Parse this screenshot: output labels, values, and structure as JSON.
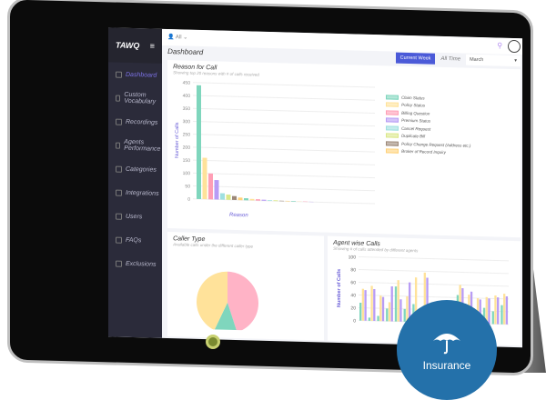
{
  "app": {
    "logo": "TAWQ",
    "filter_user": "All"
  },
  "sidebar": {
    "items": [
      {
        "label": "Dashboard",
        "active": true
      },
      {
        "label": "Custom Vocabulary"
      },
      {
        "label": "Recordings"
      },
      {
        "label": "Agents Performance"
      },
      {
        "label": "Categories"
      },
      {
        "label": "Integrations"
      },
      {
        "label": "Users"
      },
      {
        "label": "FAQs"
      },
      {
        "label": "Exclusions"
      }
    ]
  },
  "header": {
    "title": "Dashboard",
    "current_week": "Current Week",
    "all_time": "All Time",
    "period_select": "March"
  },
  "reason_chart": {
    "title": "Reason for Call",
    "subtitle": "Showing top 20 reasons with # of calls received",
    "ylabel": "Number of Calls",
    "xlabel": "Reason"
  },
  "caller_chart": {
    "title": "Caller Type",
    "subtitle": "Available calls under the different caller type"
  },
  "agent_chart": {
    "title": "Agent wise Calls",
    "subtitle": "Showing # of calls attended by different agents",
    "ylabel": "Number of Calls"
  },
  "badge": {
    "label": "Insurance",
    "icon": "umbrella-icon",
    "color": "#2471aa"
  },
  "chart_data": [
    {
      "type": "bar",
      "title": "Reason for Call",
      "xlabel": "Reason",
      "ylabel": "Number of Calls",
      "ylim": [
        0,
        450
      ],
      "yticks": [
        0,
        50,
        100,
        150,
        200,
        250,
        300,
        350,
        400,
        450
      ],
      "categories": [
        "Claim Status",
        "Policy Status",
        "Billing Question",
        "Premium Status",
        "Cancel Request",
        "Duplicate Bill",
        "Policy Change Request (Address etc.)",
        "Broker of Record Inquiry",
        "",
        "",
        "",
        "",
        "",
        "",
        "",
        "",
        "",
        "",
        "",
        ""
      ],
      "values": [
        440,
        160,
        100,
        75,
        25,
        20,
        15,
        10,
        8,
        6,
        5,
        4,
        3,
        3,
        2,
        2,
        2,
        1,
        1,
        1
      ],
      "colors": [
        "#7fd6bd",
        "#ffe29a",
        "#ff9eb5",
        "#b89cf5",
        "#9fe0e0",
        "#dbe88a",
        "#9c8878",
        "#ffd27a"
      ],
      "legend": "right"
    },
    {
      "type": "pie",
      "title": "Caller Type",
      "values": [
        45,
        12,
        43
      ],
      "colors": [
        "#ffb3c6",
        "#7fd6bd",
        "#ffe29a"
      ]
    },
    {
      "type": "bar",
      "title": "Agent wise Calls",
      "ylabel": "Number of Calls",
      "ylim": [
        0,
        100
      ],
      "yticks": [
        0,
        20,
        40,
        60,
        80,
        100
      ],
      "series": [
        {
          "values": [
            28,
            5,
            8,
            20,
            55,
            20,
            28,
            22,
            8,
            4,
            10,
            44,
            28,
            18,
            25,
            20,
            30
          ]
        },
        {
          "values": [
            50,
            55,
            40,
            30,
            65,
            40,
            70,
            78,
            30,
            15,
            35,
            60,
            45,
            40,
            42,
            45,
            48
          ]
        },
        {
          "values": [
            48,
            50,
            38,
            55,
            35,
            62,
            20,
            70,
            25,
            22,
            32,
            55,
            50,
            38,
            40,
            42,
            44
          ]
        }
      ],
      "colors": [
        "#7fd6bd",
        "#ffe29a",
        "#b89cf5"
      ]
    }
  ]
}
